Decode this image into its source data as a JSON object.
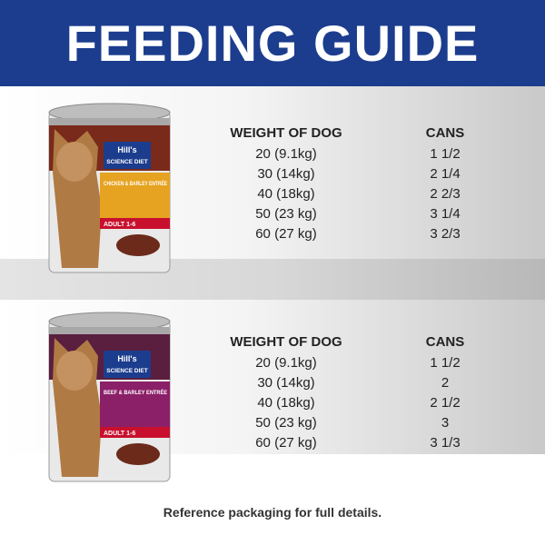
{
  "header": {
    "title": "FEEDING GUIDE"
  },
  "products": [
    {
      "brand": "Hill's",
      "line": "SCIENCE DIET",
      "flavor": "CHICKEN & BARLEY ENTRÉE",
      "age": "ADULT 1-6",
      "table": {
        "columns": [
          "WEIGHT OF DOG",
          "CANS"
        ],
        "rows": [
          [
            "20 (9.1kg)",
            "1 1/2"
          ],
          [
            "30 (14kg)",
            "2 1/4"
          ],
          [
            "40 (18kg)",
            "2 2/3"
          ],
          [
            "50 (23 kg)",
            "3 1/4"
          ],
          [
            "60 (27 kg)",
            "3 2/3"
          ]
        ]
      }
    },
    {
      "brand": "Hill's",
      "line": "SCIENCE DIET",
      "flavor": "BEEF & BARLEY ENTRÉE",
      "age": "ADULT 1-6",
      "table": {
        "columns": [
          "WEIGHT OF DOG",
          "CANS"
        ],
        "rows": [
          [
            "20 (9.1kg)",
            "1 1/2"
          ],
          [
            "30 (14kg)",
            "2"
          ],
          [
            "40 (18kg)",
            "2 1/2"
          ],
          [
            "50 (23 kg)",
            "3"
          ],
          [
            "60 (27 kg)",
            "3 1/3"
          ]
        ]
      }
    }
  ],
  "footer": "Reference packaging for full details."
}
